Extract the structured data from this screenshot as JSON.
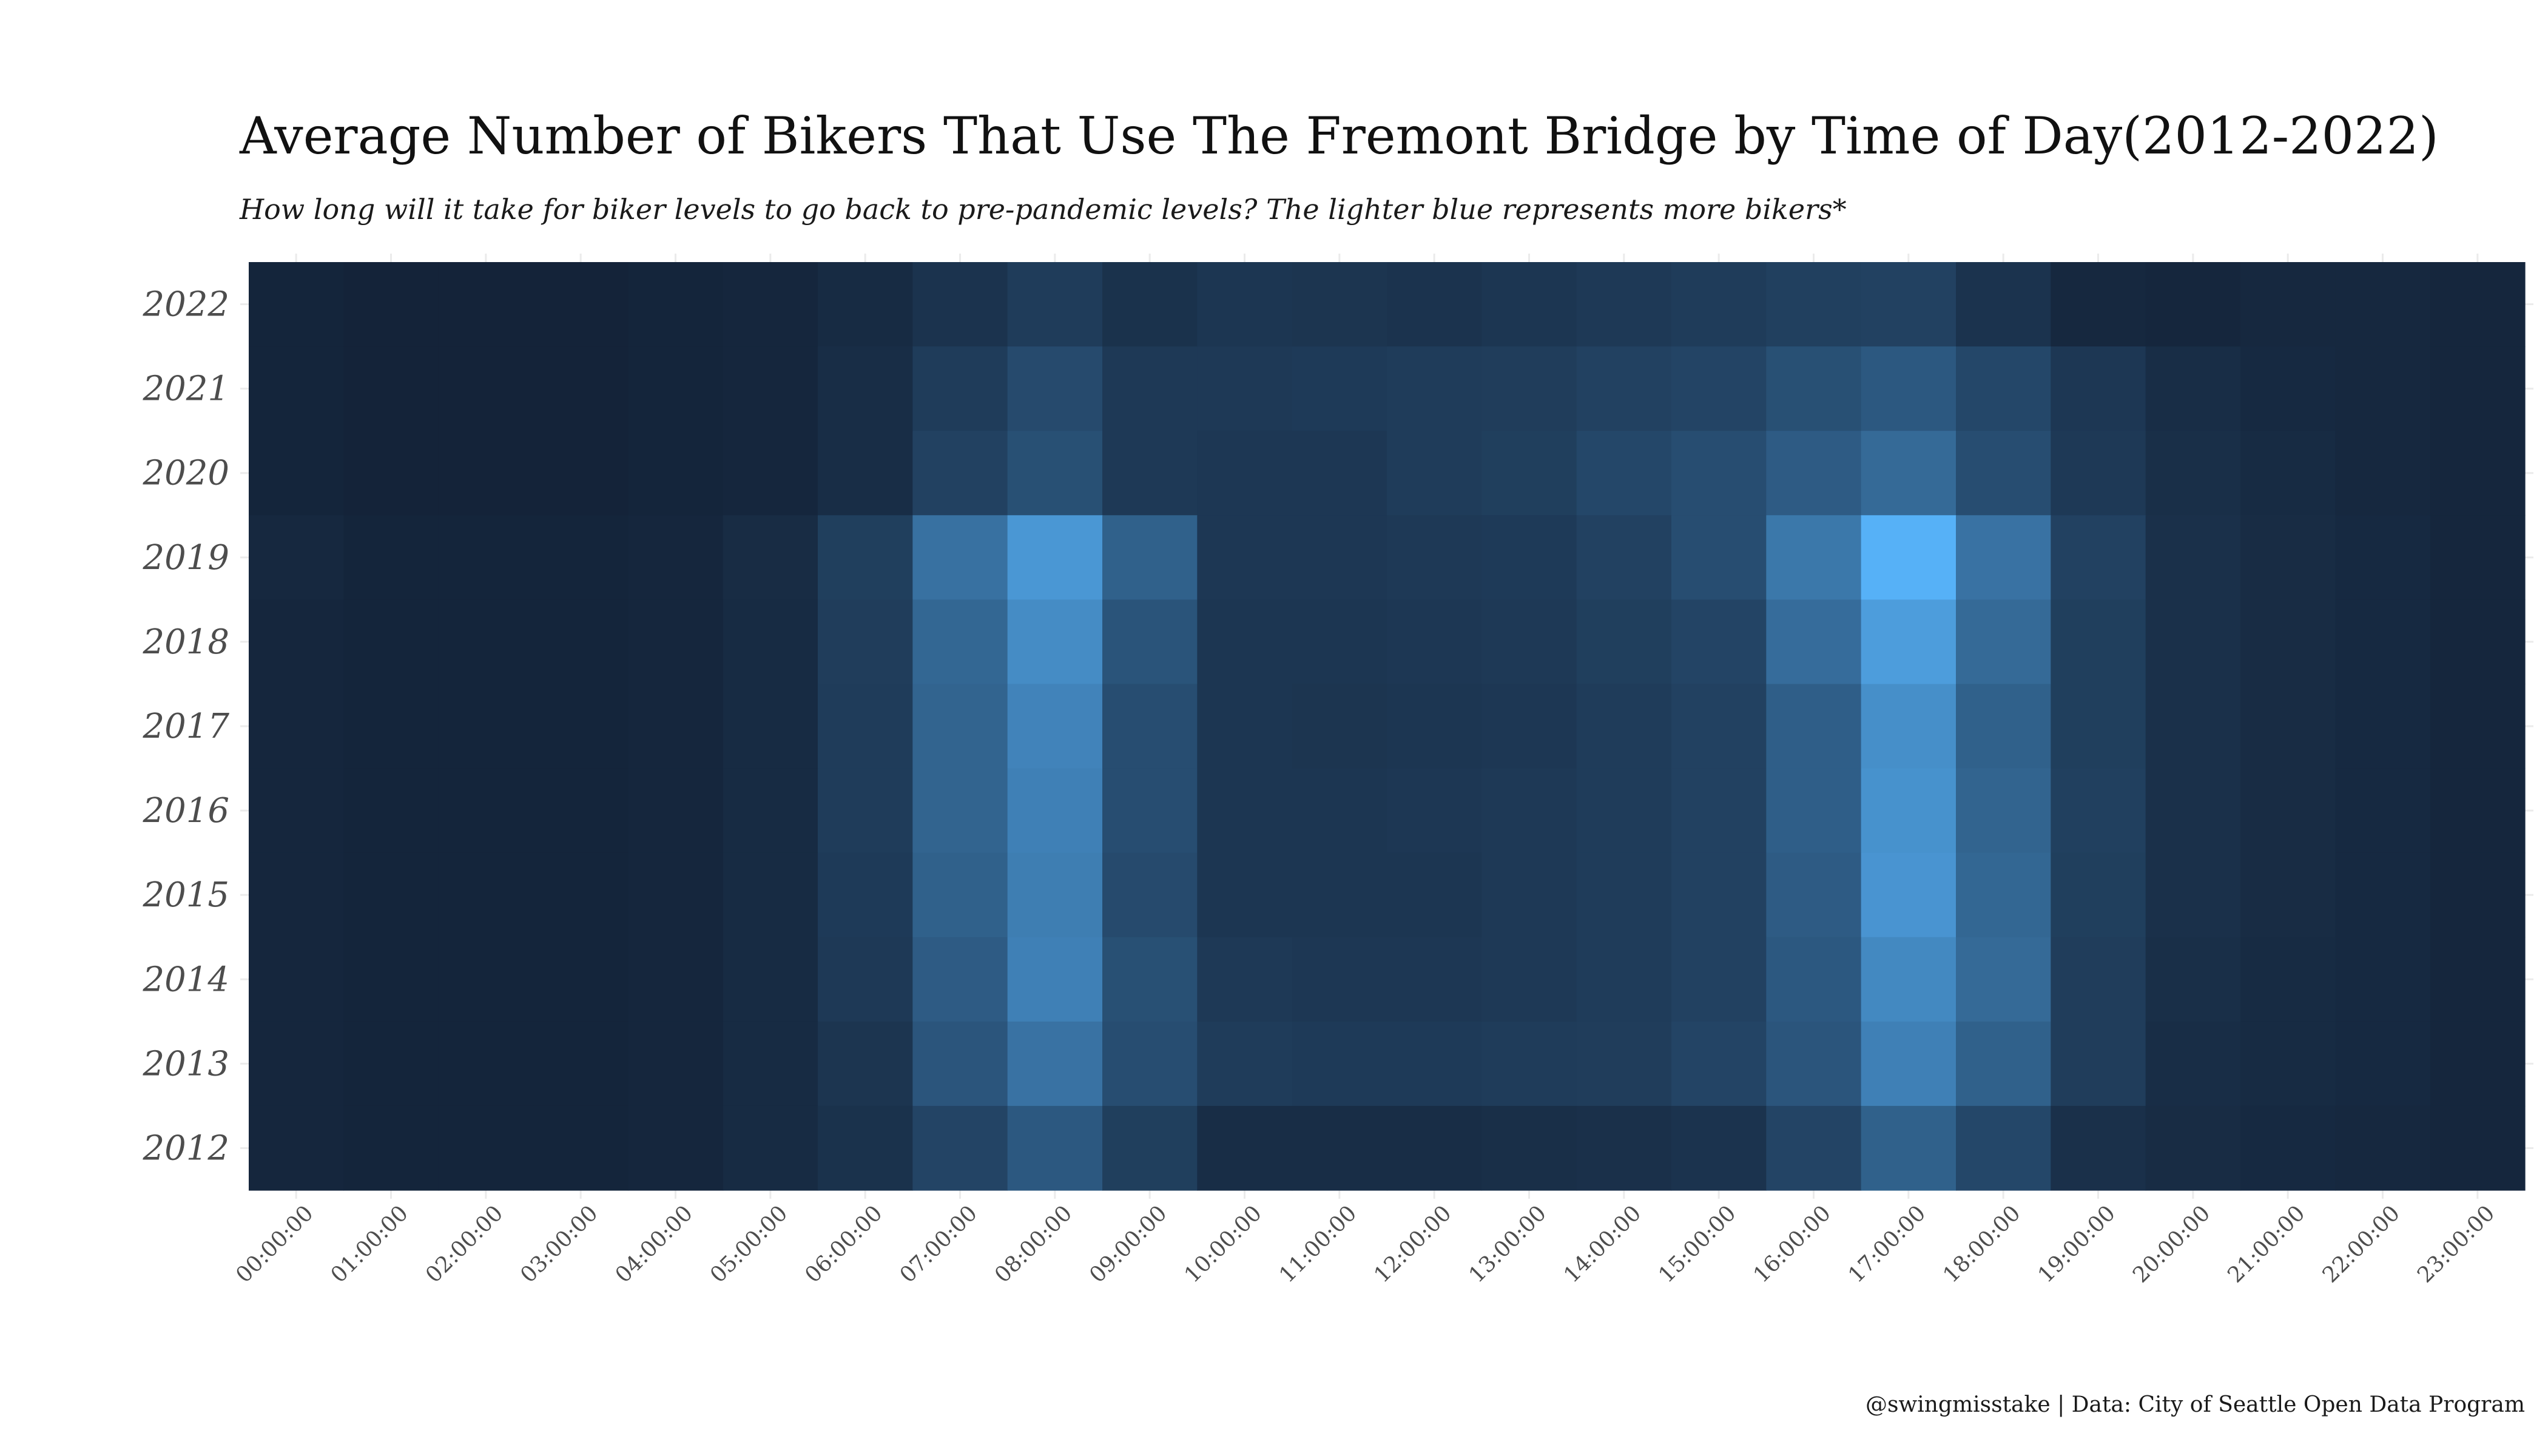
{
  "chart_data": {
    "type": "heatmap",
    "title": "Average Number of Bikers That Use The Fremont Bridge by Time of Day(2012-2022)",
    "subtitle": "How long will it take for biker levels to go back to pre-pandemic levels? The lighter blue represents more bikers*",
    "caption": "@swingmisstake | Data: City of Seattle Open Data Program",
    "xlabel": "",
    "ylabel": "",
    "x": [
      "00:00:00",
      "01:00:00",
      "02:00:00",
      "03:00:00",
      "04:00:00",
      "05:00:00",
      "06:00:00",
      "07:00:00",
      "08:00:00",
      "09:00:00",
      "10:00:00",
      "11:00:00",
      "12:00:00",
      "13:00:00",
      "14:00:00",
      "15:00:00",
      "16:00:00",
      "17:00:00",
      "18:00:00",
      "19:00:00",
      "20:00:00",
      "21:00:00",
      "22:00:00",
      "23:00:00"
    ],
    "y": [
      "2022",
      "2021",
      "2020",
      "2019",
      "2018",
      "2017",
      "2016",
      "2015",
      "2014",
      "2013",
      "2012"
    ],
    "values": [
      [
        0.02,
        0.01,
        0.01,
        0.01,
        0.02,
        0.03,
        0.06,
        0.12,
        0.18,
        0.11,
        0.14,
        0.13,
        0.12,
        0.14,
        0.16,
        0.18,
        0.21,
        0.22,
        0.12,
        0.04,
        0.03,
        0.04,
        0.04,
        0.03
      ],
      [
        0.02,
        0.01,
        0.01,
        0.01,
        0.02,
        0.03,
        0.08,
        0.18,
        0.28,
        0.16,
        0.16,
        0.17,
        0.18,
        0.19,
        0.22,
        0.24,
        0.32,
        0.38,
        0.26,
        0.15,
        0.08,
        0.05,
        0.04,
        0.03
      ],
      [
        0.02,
        0.01,
        0.01,
        0.01,
        0.02,
        0.03,
        0.08,
        0.22,
        0.32,
        0.16,
        0.15,
        0.15,
        0.18,
        0.2,
        0.26,
        0.3,
        0.4,
        0.5,
        0.3,
        0.16,
        0.09,
        0.06,
        0.04,
        0.03
      ],
      [
        0.04,
        0.02,
        0.02,
        0.02,
        0.03,
        0.07,
        0.2,
        0.55,
        0.82,
        0.44,
        0.15,
        0.15,
        0.16,
        0.17,
        0.22,
        0.3,
        0.6,
        1.0,
        0.56,
        0.22,
        0.1,
        0.07,
        0.05,
        0.03
      ],
      [
        0.03,
        0.02,
        0.02,
        0.02,
        0.03,
        0.06,
        0.19,
        0.48,
        0.74,
        0.35,
        0.14,
        0.14,
        0.15,
        0.16,
        0.2,
        0.24,
        0.52,
        0.86,
        0.5,
        0.2,
        0.1,
        0.07,
        0.05,
        0.03
      ],
      [
        0.03,
        0.02,
        0.02,
        0.02,
        0.03,
        0.06,
        0.18,
        0.46,
        0.68,
        0.3,
        0.14,
        0.13,
        0.14,
        0.15,
        0.18,
        0.22,
        0.42,
        0.76,
        0.44,
        0.2,
        0.1,
        0.07,
        0.05,
        0.03
      ],
      [
        0.03,
        0.02,
        0.02,
        0.02,
        0.03,
        0.06,
        0.18,
        0.46,
        0.66,
        0.3,
        0.14,
        0.14,
        0.15,
        0.16,
        0.18,
        0.22,
        0.42,
        0.78,
        0.46,
        0.21,
        0.1,
        0.07,
        0.05,
        0.03
      ],
      [
        0.03,
        0.02,
        0.02,
        0.02,
        0.03,
        0.06,
        0.17,
        0.44,
        0.64,
        0.28,
        0.14,
        0.14,
        0.14,
        0.16,
        0.18,
        0.22,
        0.4,
        0.8,
        0.48,
        0.2,
        0.1,
        0.07,
        0.05,
        0.03
      ],
      [
        0.03,
        0.02,
        0.02,
        0.02,
        0.03,
        0.06,
        0.16,
        0.4,
        0.66,
        0.32,
        0.16,
        0.15,
        0.15,
        0.16,
        0.18,
        0.22,
        0.38,
        0.72,
        0.5,
        0.19,
        0.09,
        0.06,
        0.05,
        0.03
      ],
      [
        0.03,
        0.02,
        0.02,
        0.02,
        0.03,
        0.06,
        0.13,
        0.36,
        0.56,
        0.3,
        0.18,
        0.17,
        0.17,
        0.18,
        0.19,
        0.24,
        0.36,
        0.66,
        0.44,
        0.19,
        0.08,
        0.06,
        0.05,
        0.03
      ],
      [
        0.03,
        0.02,
        0.02,
        0.02,
        0.03,
        0.06,
        0.11,
        0.24,
        0.38,
        0.2,
        0.08,
        0.08,
        0.08,
        0.09,
        0.1,
        0.12,
        0.24,
        0.44,
        0.26,
        0.1,
        0.07,
        0.05,
        0.04,
        0.03
      ]
    ],
    "value_scale": "relative",
    "grid": true,
    "legend": "none",
    "colors": {
      "low": "#132237",
      "high": "#56B1F7",
      "text_dark": "#111111",
      "tick_text": "#4d4d4d",
      "grid": "#ebebeb"
    }
  }
}
